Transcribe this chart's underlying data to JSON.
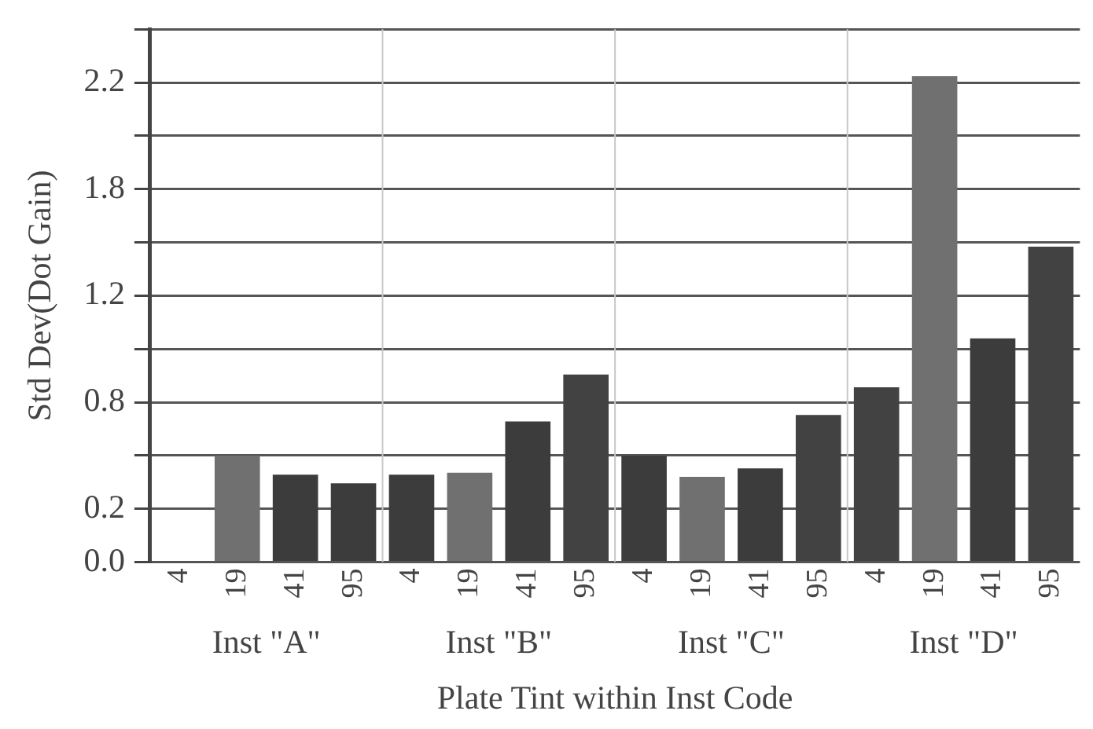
{
  "chart_data": {
    "type": "bar",
    "xlabel": "Plate Tint within Inst Code",
    "ylabel": "Std Dev(Dot Gain)",
    "categories": [
      "4",
      "19",
      "41",
      "95",
      "4",
      "19",
      "41",
      "95",
      "4",
      "19",
      "41",
      "95",
      "4",
      "19",
      "41",
      "95"
    ],
    "values": [
      null,
      0.5,
      0.41,
      0.37,
      0.41,
      0.42,
      0.66,
      0.88,
      0.5,
      0.4,
      0.44,
      0.69,
      0.82,
      2.28,
      1.05,
      1.48
    ],
    "colors": [
      "#3c3c3c",
      "#707070",
      "#3c3c3c",
      "#3c3c3c",
      "#3c3c3c",
      "#707070",
      "#3c3c3c",
      "#424242",
      "#3c3c3c",
      "#707070",
      "#3c3c3c",
      "#424242",
      "#424242",
      "#707070",
      "#3c3c3c",
      "#424242"
    ],
    "annotations": [
      "Inst \"A\"",
      "Inst \"B\"",
      "Inst \"C\"",
      "Inst \"D\""
    ],
    "ylim": [
      0,
      2.5
    ],
    "yticks": [
      {
        "value": 0,
        "label": "0.0"
      },
      {
        "value": 0.25,
        "label": "0.2"
      },
      {
        "value": 0.5,
        "label": null
      },
      {
        "value": 0.75,
        "label": "0.8"
      },
      {
        "value": 1.0,
        "label": null
      },
      {
        "value": 1.25,
        "label": "1.2"
      },
      {
        "value": 1.5,
        "label": null
      },
      {
        "value": 1.75,
        "label": "1.8"
      },
      {
        "value": 2.0,
        "label": null
      },
      {
        "value": 2.25,
        "label": "2.2"
      },
      {
        "value": 2.5,
        "label": null
      }
    ],
    "grid": "y",
    "legend": false
  }
}
